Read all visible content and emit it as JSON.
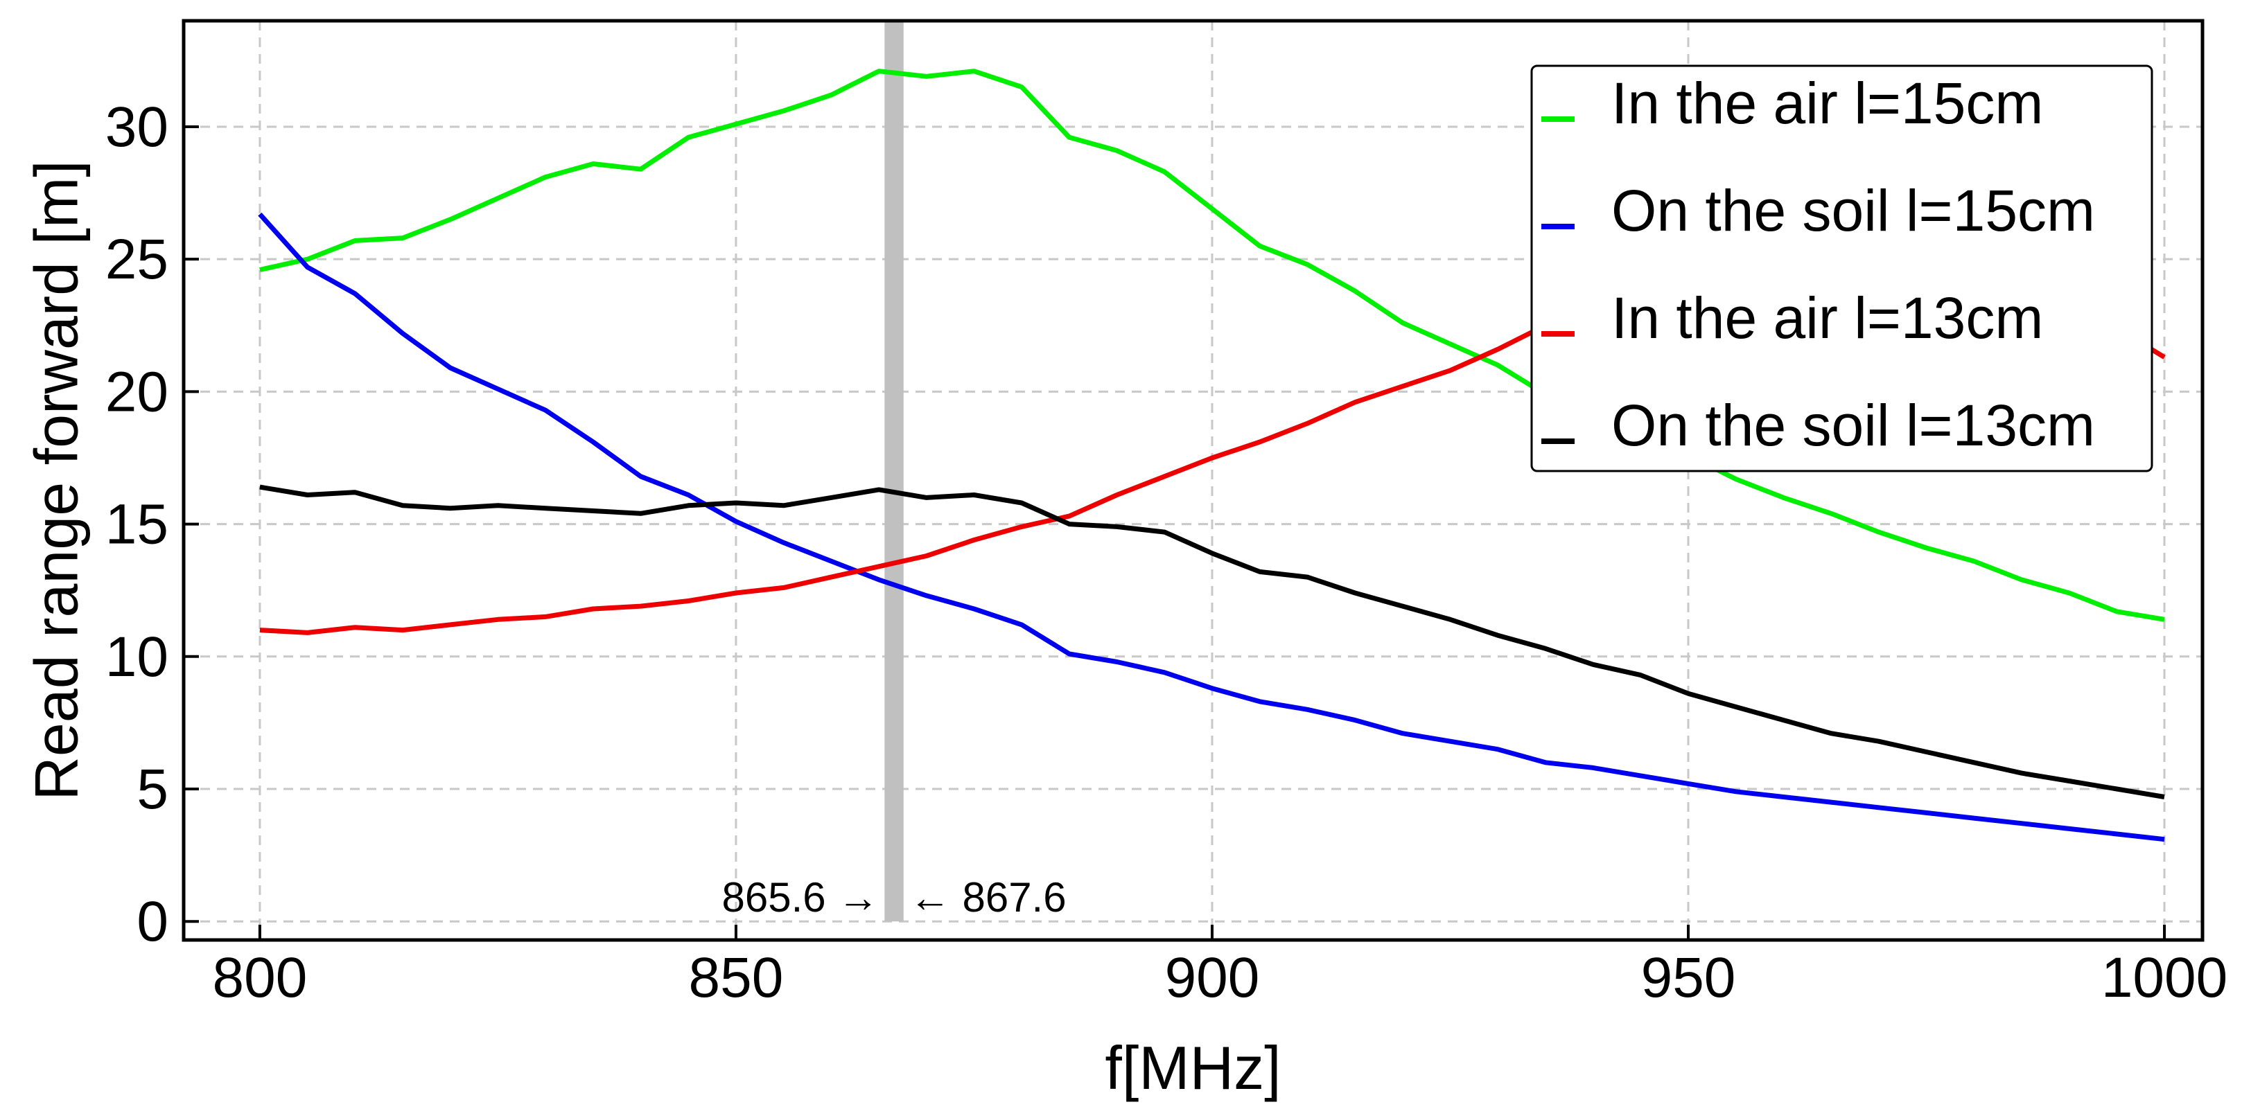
{
  "chart_data": {
    "type": "line",
    "title": "",
    "xlabel": "f[MHz]",
    "ylabel": "Read range forward [m]",
    "xlim": [
      792,
      1004
    ],
    "ylim": [
      -0.7,
      34
    ],
    "xticks": [
      800,
      850,
      900,
      950,
      1000
    ],
    "yticks": [
      0,
      5,
      10,
      15,
      20,
      25,
      30
    ],
    "grid": true,
    "legend_position": "top-right",
    "x": [
      800,
      805,
      810,
      815,
      820,
      825,
      830,
      835,
      840,
      845,
      850,
      855,
      860,
      865,
      870,
      875,
      880,
      885,
      890,
      895,
      900,
      905,
      910,
      915,
      920,
      925,
      930,
      935,
      940,
      945,
      950,
      955,
      960,
      965,
      970,
      975,
      980,
      985,
      990,
      995,
      1000
    ],
    "series": [
      {
        "name": "In the air l=15cm",
        "color": "#00ee00",
        "values": [
          24.6,
          25.0,
          25.7,
          25.8,
          26.5,
          27.3,
          28.1,
          28.6,
          28.4,
          29.6,
          30.1,
          30.6,
          31.2,
          32.1,
          31.9,
          32.1,
          31.5,
          29.6,
          29.1,
          28.3,
          26.9,
          25.5,
          24.8,
          23.8,
          22.6,
          21.8,
          21.0,
          19.9,
          19.1,
          18.4,
          17.6,
          16.7,
          16.0,
          15.4,
          14.7,
          14.1,
          13.6,
          12.9,
          12.4,
          11.7,
          11.4
        ]
      },
      {
        "name": "On the soil l=15cm",
        "color": "#0000ee",
        "values": [
          26.7,
          24.7,
          23.7,
          22.2,
          20.9,
          20.1,
          19.3,
          18.1,
          16.8,
          16.1,
          15.1,
          14.3,
          13.6,
          12.9,
          12.3,
          11.8,
          11.2,
          10.1,
          9.8,
          9.4,
          8.8,
          8.3,
          8.0,
          7.6,
          7.1,
          6.8,
          6.5,
          6.0,
          5.8,
          5.5,
          5.2,
          4.9,
          4.7,
          4.5,
          4.3,
          4.1,
          3.9,
          3.7,
          3.5,
          3.3,
          3.1
        ]
      },
      {
        "name": "In the air l=13cm",
        "color": "#ee0000",
        "values": [
          11.0,
          10.9,
          11.1,
          11.0,
          11.2,
          11.4,
          11.5,
          11.8,
          11.9,
          12.1,
          12.4,
          12.6,
          13.0,
          13.4,
          13.8,
          14.4,
          14.9,
          15.3,
          16.1,
          16.8,
          17.5,
          18.1,
          18.8,
          19.6,
          20.2,
          20.8,
          21.6,
          22.5,
          22.9,
          23.9,
          24.3,
          24.5,
          24.9,
          25.1,
          25.2,
          25.1,
          24.6,
          24.0,
          23.6,
          22.4,
          21.3
        ]
      },
      {
        "name": "On the soil l=13cm",
        "color": "#000000",
        "values": [
          16.4,
          16.1,
          16.2,
          15.7,
          15.6,
          15.7,
          15.6,
          15.5,
          15.4,
          15.7,
          15.8,
          15.7,
          16.0,
          16.3,
          16.0,
          16.1,
          15.8,
          15.0,
          14.9,
          14.7,
          13.9,
          13.2,
          13.0,
          12.4,
          11.9,
          11.4,
          10.8,
          10.3,
          9.7,
          9.3,
          8.6,
          8.1,
          7.6,
          7.1,
          6.8,
          6.4,
          6.0,
          5.6,
          5.3,
          5.0,
          4.7
        ]
      }
    ],
    "band": {
      "x_start": 865.6,
      "x_end": 867.6,
      "color": "#c0c0c0",
      "label_left": "865.6 →",
      "label_right": "← 867.6"
    }
  }
}
